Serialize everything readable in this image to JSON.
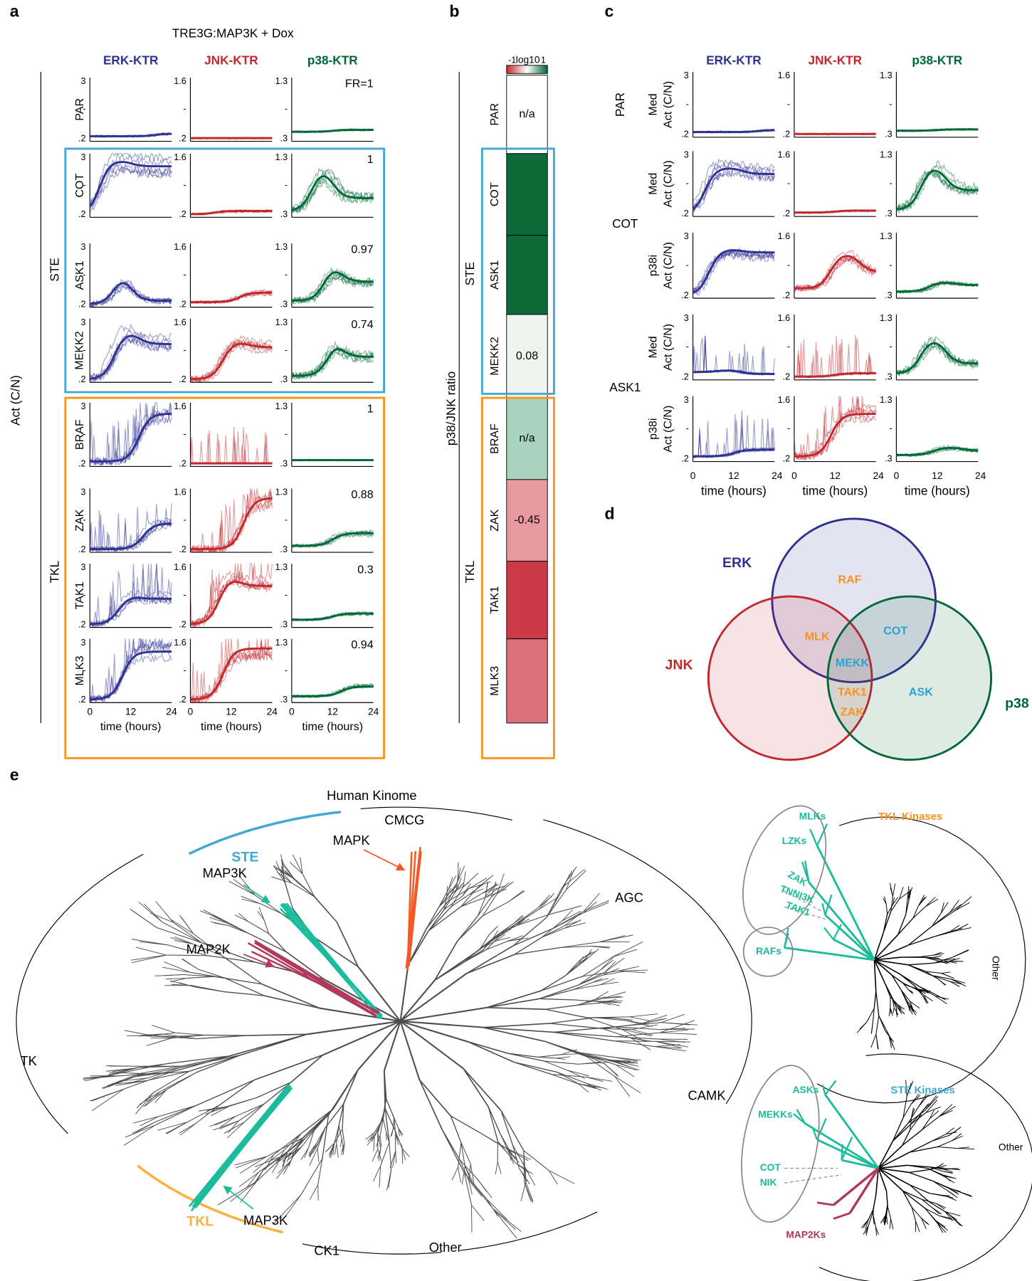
{
  "panel_labels": [
    "a",
    "b",
    "c",
    "d",
    "e"
  ],
  "panel_a": {
    "title": "TRE3G:MAP3K + Dox",
    "columns": [
      {
        "name": "ERK-KTR",
        "color": "#2e3192",
        "top": 3,
        "mid": "-",
        "bottom": ".2"
      },
      {
        "name": "JNK-KTR",
        "color": "#c1272d",
        "top": 1.6,
        "mid": "-",
        "bottom": ".2"
      },
      {
        "name": "p38-KTR",
        "color": "#006837",
        "top": 1.3,
        "mid": "-",
        "bottom": ".3"
      }
    ],
    "rows": [
      "PAR",
      "COT",
      "ASK1",
      "MEKK2",
      "BRAF",
      "ZAK",
      "TAK1",
      "MLK3"
    ],
    "fold_ratio": [
      "FR=1",
      "1",
      "0.97",
      "0.74",
      "1",
      "0.88",
      "0.3",
      "0.94"
    ],
    "groups": [
      "STE",
      "TKL"
    ],
    "ylabel": "Act (C/N)",
    "xticks": [
      0,
      12,
      24
    ],
    "xlabel": "time (hours)"
  },
  "panel_b": {
    "label": "p38/JNK ratio",
    "colorbar": {
      "min": "-1",
      "title": "log10",
      "max": "1"
    },
    "groups": [
      "STE",
      "TKL"
    ],
    "cells": [
      {
        "row": "PAR",
        "value": null,
        "value_label": "n/a",
        "color": "#ffffff"
      },
      {
        "row": "COT",
        "value": 1,
        "color": "#0d6b3a"
      },
      {
        "row": "ASK1",
        "value": 1,
        "color": "#0d6b3a"
      },
      {
        "row": "MEKK2",
        "value": 0.08,
        "value_label": "0.08",
        "color": "#eef5f0"
      },
      {
        "row": "BRAF",
        "value": null,
        "value_label": "n/a",
        "color": "#a8d4bd"
      },
      {
        "row": "ZAK",
        "value": -0.45,
        "value_label": "-0.45",
        "color": "#e8999f"
      },
      {
        "row": "TAK1",
        "value": -1,
        "color": "#cc3a48"
      },
      {
        "row": "MLK3",
        "value": -0.7,
        "color": "#dc707b"
      }
    ]
  },
  "panel_c": {
    "columns": [
      {
        "name": "ERK-KTR",
        "color": "#2e3192",
        "top": 3,
        "mid": "-",
        "bottom": ".2"
      },
      {
        "name": "JNK-KTR",
        "color": "#c1272d",
        "top": 1.6,
        "mid": "-",
        "bottom": ".2"
      },
      {
        "name": "p38-KTR",
        "color": "#006837",
        "top": 1.3,
        "mid": "-",
        "bottom": ".3"
      }
    ],
    "groups": [
      {
        "name": "PAR",
        "rows": [
          "Med"
        ]
      },
      {
        "name": "COT",
        "rows": [
          "Med",
          "p38i"
        ]
      },
      {
        "name": "ASK1",
        "rows": [
          "Med",
          "p38i"
        ]
      }
    ],
    "ylabel": "Act (C/N)",
    "xticks": [
      0,
      12,
      24
    ],
    "xlabel": "time (hours)"
  },
  "panel_d": {
    "sets": [
      {
        "name": "ERK",
        "color": "#2e3192"
      },
      {
        "name": "JNK",
        "color": "#c1272d"
      },
      {
        "name": "p38",
        "color": "#006837"
      }
    ],
    "items": [
      {
        "label": "RAF",
        "color": "#f7931e"
      },
      {
        "label": "MLK",
        "color": "#f7931e"
      },
      {
        "label": "COT",
        "color": "#29a3d1"
      },
      {
        "label": "MEKK",
        "color": "#29a3d1"
      },
      {
        "label": "TAK1",
        "color": "#f7931e"
      },
      {
        "label": "ZAK",
        "color": "#f7931e"
      },
      {
        "label": "ASK",
        "color": "#29a3d1"
      }
    ]
  },
  "panel_e": {
    "title": "Human Kinome",
    "groups": [
      "CMCG",
      "AGC",
      "CAMK",
      "CK1",
      "Other",
      "TK",
      "TKL",
      "STE"
    ],
    "callouts": [
      "MAPK",
      "MAP3K",
      "MAP2K",
      "MAP3K"
    ],
    "insets": [
      {
        "title": "TKL Kinases",
        "labels": [
          "MLKs",
          "LZKs",
          "ZAK",
          "TNNI3K",
          "TAK1",
          "RAFs"
        ],
        "other": "Other"
      },
      {
        "title": "STE Kinases",
        "labels": [
          "ASKs",
          "MEKKs",
          "COT",
          "NIK",
          "MAP2Ks"
        ],
        "other": "Other"
      }
    ]
  }
}
